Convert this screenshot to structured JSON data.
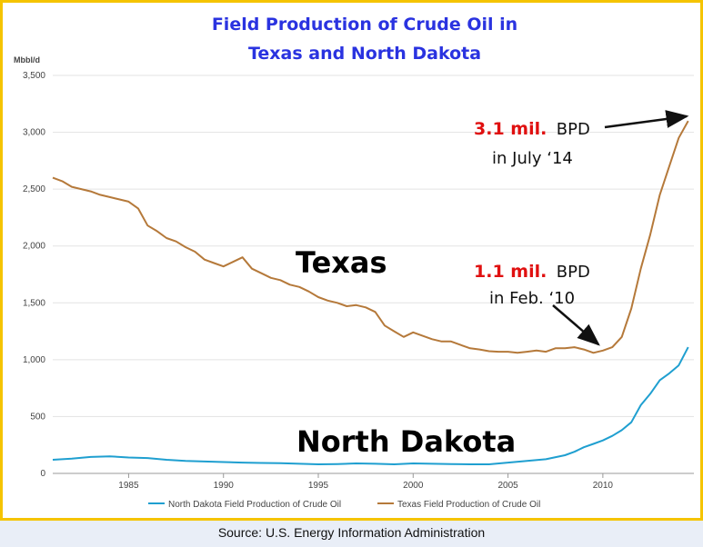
{
  "chart_data": {
    "type": "line",
    "title_lines": [
      "Field Production of Crude Oil in",
      "Texas and North Dakota"
    ],
    "ylabel": "Mbbl/d",
    "xlabel": "",
    "xlim": [
      1981,
      2014.8
    ],
    "ylim": [
      0,
      3500
    ],
    "y_ticks": [
      {
        "value": 0,
        "label": "0"
      },
      {
        "value": 500,
        "label": "500"
      },
      {
        "value": 1000,
        "label": "1,000"
      },
      {
        "value": 1500,
        "label": "1,500"
      },
      {
        "value": 2000,
        "label": "2,000"
      },
      {
        "value": 2500,
        "label": "2,500"
      },
      {
        "value": 3000,
        "label": "3,000"
      },
      {
        "value": 3500,
        "label": "3,500"
      }
    ],
    "x_ticks": [
      {
        "value": 1985,
        "label": "1985"
      },
      {
        "value": 1990,
        "label": "1990"
      },
      {
        "value": 1995,
        "label": "1995"
      },
      {
        "value": 2000,
        "label": "2000"
      },
      {
        "value": 2005,
        "label": "2005"
      },
      {
        "value": 2010,
        "label": "2010"
      }
    ],
    "grid": "horizontal",
    "legend_position": "bottom",
    "series": [
      {
        "name": "North Dakota Field Production of Crude Oil",
        "color": "#1f9fd0",
        "x": [
          1981,
          1982,
          1983,
          1984,
          1985,
          1986,
          1987,
          1988,
          1989,
          1990,
          1991,
          1992,
          1993,
          1994,
          1995,
          1996,
          1997,
          1998,
          1999,
          2000,
          2001,
          2002,
          2003,
          2004,
          2005,
          2006,
          2007,
          2008,
          2008.5,
          2009,
          2009.5,
          2010,
          2010.5,
          2011,
          2011.5,
          2012,
          2012.5,
          2013,
          2013.5,
          2014,
          2014.5
        ],
        "values": [
          120,
          130,
          145,
          150,
          140,
          135,
          120,
          110,
          105,
          100,
          95,
          92,
          90,
          85,
          80,
          82,
          88,
          85,
          80,
          88,
          85,
          82,
          80,
          80,
          95,
          110,
          125,
          160,
          190,
          230,
          260,
          290,
          330,
          380,
          450,
          600,
          700,
          820,
          880,
          950,
          1110
        ]
      },
      {
        "name": "Texas Field Production of Crude Oil",
        "color": "#b5793a",
        "x": [
          1981,
          1981.5,
          1982,
          1982.5,
          1983,
          1983.5,
          1984,
          1984.5,
          1985,
          1985.5,
          1986,
          1986.5,
          1987,
          1987.5,
          1988,
          1988.5,
          1989,
          1989.5,
          1990,
          1990.5,
          1991,
          1991.5,
          1992,
          1992.5,
          1993,
          1993.5,
          1994,
          1994.5,
          1995,
          1995.5,
          1996,
          1996.5,
          1997,
          1997.5,
          1998,
          1998.5,
          1999,
          1999.5,
          2000,
          2000.5,
          2001,
          2001.5,
          2002,
          2002.5,
          2003,
          2003.5,
          2004,
          2004.5,
          2005,
          2005.5,
          2006,
          2006.5,
          2007,
          2007.5,
          2008,
          2008.5,
          2009,
          2009.5,
          2010,
          2010.5,
          2011,
          2011.5,
          2012,
          2012.5,
          2013,
          2013.5,
          2014,
          2014.5
        ],
        "values": [
          2600,
          2570,
          2520,
          2500,
          2480,
          2450,
          2430,
          2410,
          2390,
          2330,
          2180,
          2130,
          2070,
          2040,
          1990,
          1950,
          1880,
          1850,
          1820,
          1860,
          1900,
          1800,
          1760,
          1720,
          1700,
          1660,
          1640,
          1600,
          1550,
          1520,
          1500,
          1470,
          1480,
          1460,
          1420,
          1300,
          1250,
          1200,
          1240,
          1210,
          1180,
          1160,
          1160,
          1130,
          1100,
          1090,
          1075,
          1070,
          1070,
          1060,
          1070,
          1080,
          1070,
          1100,
          1100,
          1110,
          1090,
          1060,
          1080,
          1110,
          1200,
          1450,
          1800,
          2100,
          2450,
          2700,
          2950,
          3100
        ]
      }
    ],
    "annotations": [
      {
        "id": "ann-2014",
        "highlight": "3.1 mil.",
        "suffix": "BPD",
        "line2": "in July ‘14",
        "target_x": 2014.5,
        "target_y": 3100
      },
      {
        "id": "ann-2010",
        "highlight": "1.1 mil.",
        "suffix": "BPD",
        "line2": "in Feb. ‘10",
        "target_x": 2009.6,
        "target_y": 1090
      }
    ],
    "series_labels": [
      {
        "text": "Texas",
        "color": "#e7a818"
      },
      {
        "text": "North Dakota",
        "color": "#2eaee0"
      }
    ]
  },
  "source": "Source: U.S. Energy Information Administration"
}
